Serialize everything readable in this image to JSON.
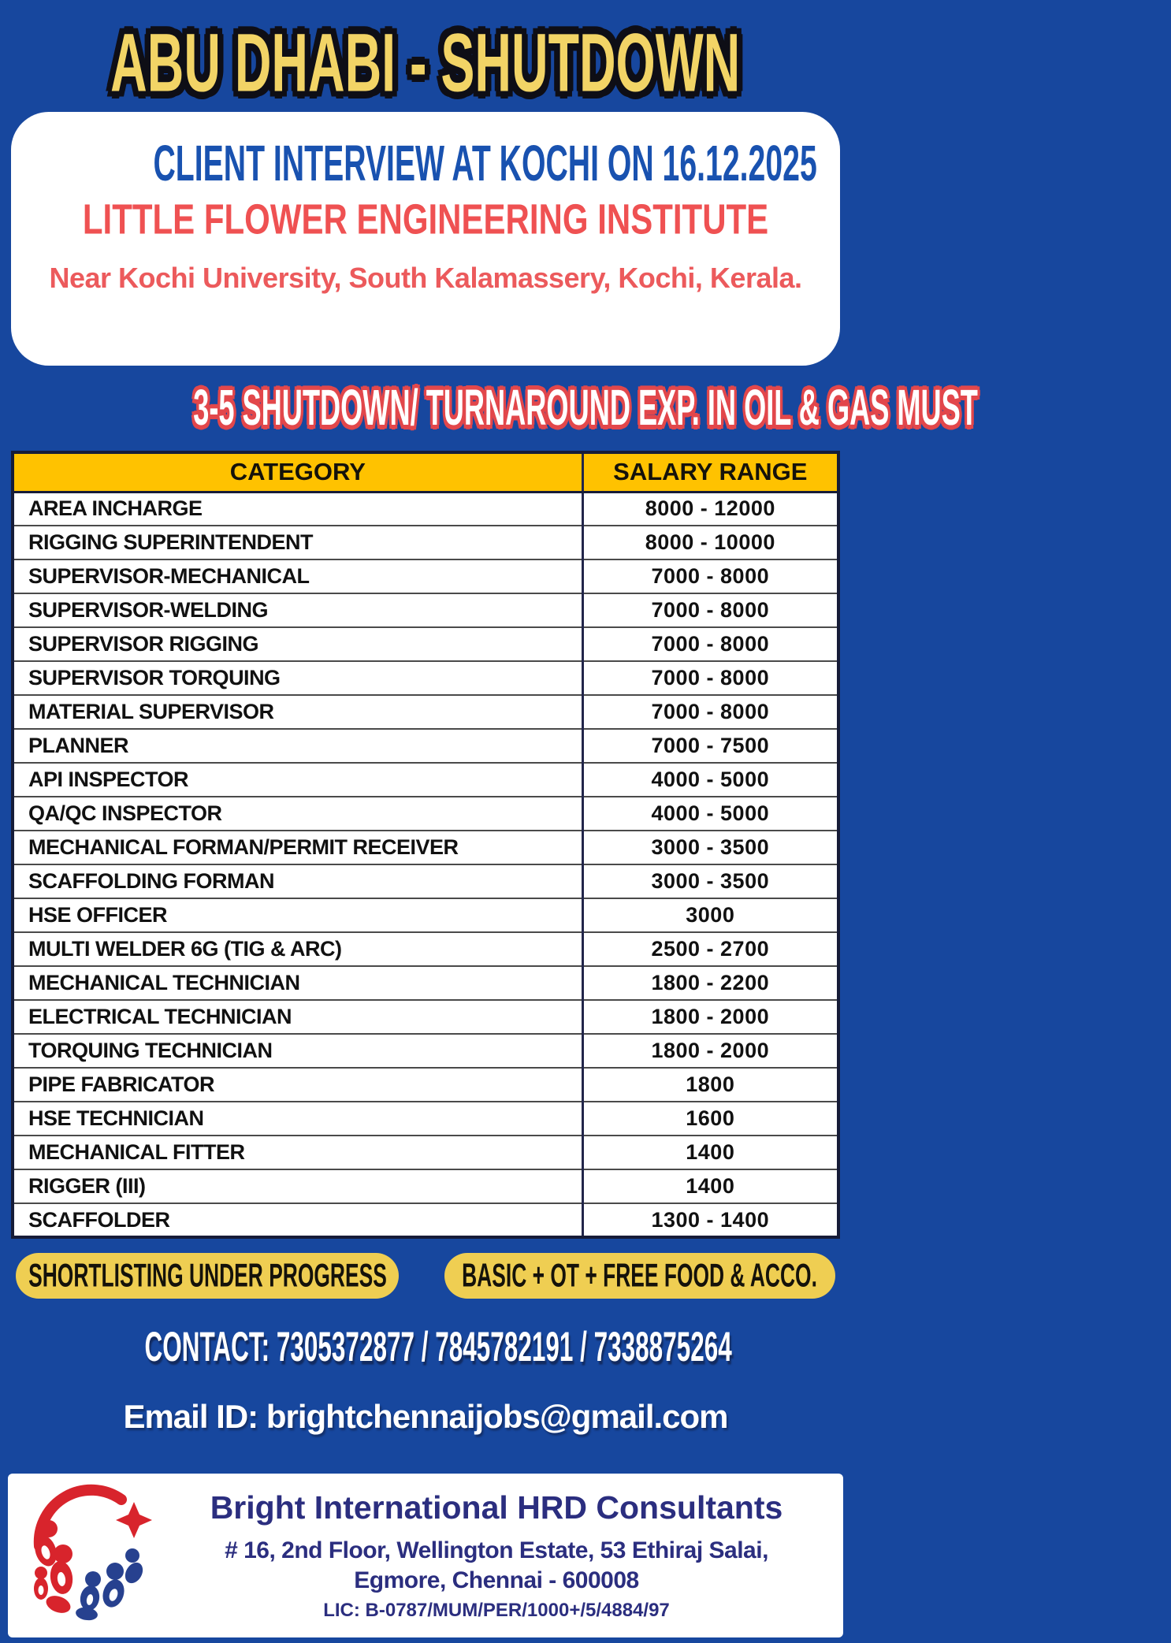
{
  "title": "ABU DHABI - SHUTDOWN",
  "interview_card": {
    "headline": "CLIENT INTERVIEW AT KOCHI ON 16.12.2025",
    "venue": "LITTLE FLOWER ENGINEERING INSTITUTE",
    "venue_address": "Near Kochi University, South Kalamassery, Kochi, Kerala."
  },
  "experience_banner": "3-5 SHUTDOWN/ TURNAROUND EXP. IN OIL & GAS MUST",
  "table": {
    "headers": [
      "CATEGORY",
      "SALARY RANGE"
    ],
    "rows": [
      [
        "AREA INCHARGE",
        "8000 - 12000"
      ],
      [
        "RIGGING SUPERINTENDENT",
        "8000 - 10000"
      ],
      [
        "SUPERVISOR-MECHANICAL",
        "7000 - 8000"
      ],
      [
        "SUPERVISOR-WELDING",
        "7000 - 8000"
      ],
      [
        "SUPERVISOR RIGGING",
        "7000 - 8000"
      ],
      [
        "SUPERVISOR TORQUING",
        "7000 - 8000"
      ],
      [
        "MATERIAL SUPERVISOR",
        "7000 - 8000"
      ],
      [
        "PLANNER",
        "7000 - 7500"
      ],
      [
        "API INSPECTOR",
        "4000 - 5000"
      ],
      [
        "QA/QC INSPECTOR",
        "4000 - 5000"
      ],
      [
        "MECHANICAL FORMAN/PERMIT RECEIVER",
        "3000 - 3500"
      ],
      [
        "SCAFFOLDING FORMAN",
        "3000 - 3500"
      ],
      [
        "HSE OFFICER",
        "3000"
      ],
      [
        "MULTI WELDER 6G (TIG & ARC)",
        "2500 - 2700"
      ],
      [
        "MECHANICAL TECHNICIAN",
        "1800 - 2200"
      ],
      [
        "ELECTRICAL TECHNICIAN",
        "1800 - 2000"
      ],
      [
        "TORQUING TECHNICIAN",
        "1800 - 2000"
      ],
      [
        "PIPE FABRICATOR",
        "1800"
      ],
      [
        "HSE TECHNICIAN",
        "1600"
      ],
      [
        "MECHANICAL FITTER",
        "1400"
      ],
      [
        "RIGGER (III)",
        "1400"
      ],
      [
        "SCAFFOLDER",
        "1300 - 1400"
      ]
    ]
  },
  "badges": {
    "shortlisting": "SHORTLISTING UNDER PROGRESS",
    "benefits": "BASIC + OT + FREE FOOD & ACCO."
  },
  "contact_line": "CONTACT: 7305372877 / 7845782191 / 7338875264",
  "email_line": "Email ID: brightchennaijobs@gmail.com",
  "footer": {
    "company": "Bright International HRD Consultants",
    "address_line1": "# 16, 2nd Floor, Wellington Estate, 53 Ethiraj Salai,",
    "address_line2": "Egmore, Chennai - 600008",
    "license": "LIC: B-0787/MUM/PER/1000+/5/4884/97"
  },
  "colors": {
    "background_blue": "#17479E",
    "title_yellow": "#F2D466",
    "title_outline": "#0E0E16",
    "headline_blue": "#1952B0",
    "institute_red": "#EF5152",
    "address_red": "#EC5A5C",
    "banner_fill": "#FFFFFF",
    "banner_outline_red": "#E2474B",
    "table_header_yellow": "#FFC200",
    "badge_yellow": "#EFCE52",
    "footer_navy": "#2B2E7F",
    "logo_red": "#D8242C",
    "logo_blue": "#27418F"
  }
}
